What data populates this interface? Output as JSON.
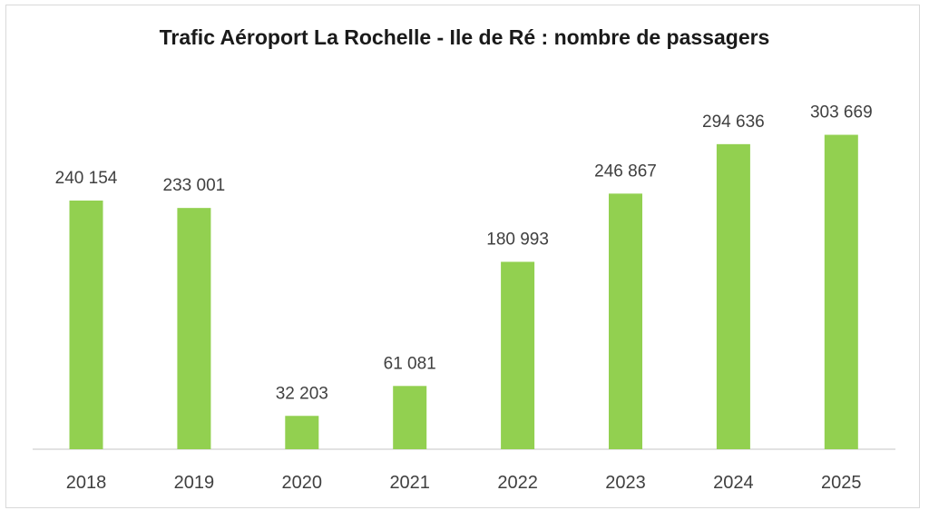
{
  "chart_data": {
    "type": "bar",
    "title": "Trafic Aéroport La Rochelle - Ile de Ré : nombre de passagers",
    "categories": [
      "2018",
      "2019",
      "2020",
      "2021",
      "2022",
      "2023",
      "2024",
      "2025"
    ],
    "values": [
      240154,
      233001,
      32203,
      61081,
      180993,
      246867,
      294636,
      303669
    ],
    "data_labels": [
      "240 154",
      "233 001",
      "32 203",
      "61 081",
      "180 993",
      "246 867",
      "294 636",
      "303 669"
    ],
    "xlabel": "",
    "ylabel": "",
    "ylim": [
      0,
      320000
    ],
    "grid": false,
    "legend": "none",
    "bar_color": "#92d050"
  }
}
